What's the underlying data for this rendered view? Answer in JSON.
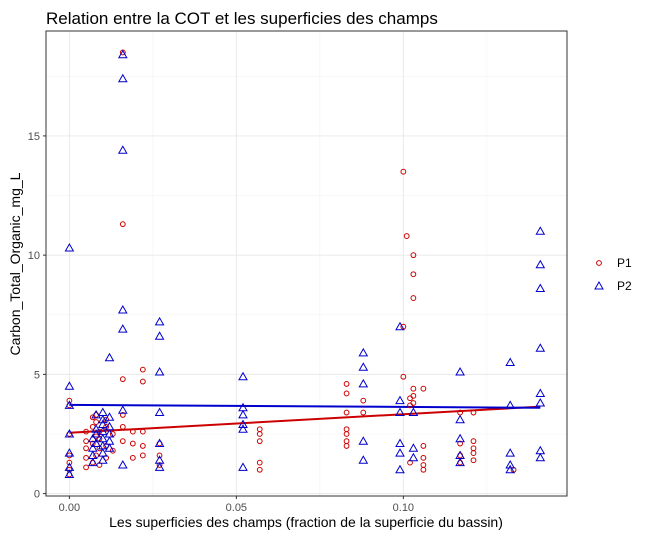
{
  "chart_data": {
    "type": "scatter",
    "title": "Relation entre la COT et les superficies des champs",
    "xlabel": "Les superficies des champs (fraction de la superficie du bassin)",
    "ylabel": "Carbon_Total_Organic_mg_L",
    "xlim": [
      -0.007,
      0.149
    ],
    "ylim": [
      -0.1,
      19.4
    ],
    "x_ticks": [
      0.0,
      0.05,
      0.1
    ],
    "x_tick_labels": [
      "0.00",
      "0.05",
      "0.10"
    ],
    "y_ticks": [
      0,
      5,
      10,
      15
    ],
    "y_tick_labels": [
      "0",
      "5",
      "10",
      "15"
    ],
    "grid": true,
    "legend_position": "right",
    "series": [
      {
        "name": "P1",
        "color": "#cc0000",
        "marker": "circle",
        "points": [
          [
            0.0,
            0.8
          ],
          [
            0.0,
            1.0
          ],
          [
            0.0,
            1.3
          ],
          [
            0.0,
            1.6
          ],
          [
            0.0,
            2.5
          ],
          [
            0.0,
            3.7
          ],
          [
            0.0,
            3.9
          ],
          [
            0.005,
            1.1
          ],
          [
            0.005,
            1.5
          ],
          [
            0.005,
            1.9
          ],
          [
            0.005,
            2.2
          ],
          [
            0.005,
            2.6
          ],
          [
            0.007,
            1.3
          ],
          [
            0.007,
            2.1
          ],
          [
            0.007,
            2.8
          ],
          [
            0.007,
            3.2
          ],
          [
            0.008,
            1.6
          ],
          [
            0.008,
            2.4
          ],
          [
            0.008,
            3.0
          ],
          [
            0.008,
            3.3
          ],
          [
            0.009,
            1.2
          ],
          [
            0.009,
            1.9
          ],
          [
            0.009,
            2.3
          ],
          [
            0.009,
            2.6
          ],
          [
            0.011,
            1.5
          ],
          [
            0.011,
            2.0
          ],
          [
            0.011,
            2.8
          ],
          [
            0.011,
            3.1
          ],
          [
            0.013,
            1.8
          ],
          [
            0.013,
            2.5
          ],
          [
            0.016,
            18.5
          ],
          [
            0.016,
            11.3
          ],
          [
            0.016,
            4.8
          ],
          [
            0.016,
            3.3
          ],
          [
            0.016,
            2.8
          ],
          [
            0.016,
            2.2
          ],
          [
            0.019,
            1.5
          ],
          [
            0.019,
            2.1
          ],
          [
            0.019,
            2.6
          ],
          [
            0.022,
            5.2
          ],
          [
            0.022,
            4.7
          ],
          [
            0.022,
            2.6
          ],
          [
            0.022,
            2.0
          ],
          [
            0.022,
            1.6
          ],
          [
            0.027,
            1.2
          ],
          [
            0.027,
            1.6
          ],
          [
            0.027,
            2.1
          ],
          [
            0.057,
            2.7
          ],
          [
            0.057,
            2.5
          ],
          [
            0.057,
            2.2
          ],
          [
            0.057,
            1.3
          ],
          [
            0.057,
            1.0
          ],
          [
            0.083,
            4.6
          ],
          [
            0.083,
            4.2
          ],
          [
            0.083,
            3.4
          ],
          [
            0.083,
            2.7
          ],
          [
            0.083,
            2.5
          ],
          [
            0.083,
            2.2
          ],
          [
            0.083,
            2.0
          ],
          [
            0.088,
            3.9
          ],
          [
            0.088,
            3.4
          ],
          [
            0.1,
            13.5
          ],
          [
            0.1,
            7.0
          ],
          [
            0.1,
            4.9
          ],
          [
            0.101,
            10.8
          ],
          [
            0.102,
            4.0
          ],
          [
            0.102,
            3.7
          ],
          [
            0.102,
            1.3
          ],
          [
            0.103,
            10.0
          ],
          [
            0.103,
            9.2
          ],
          [
            0.103,
            8.2
          ],
          [
            0.103,
            4.4
          ],
          [
            0.103,
            4.1
          ],
          [
            0.103,
            3.8
          ],
          [
            0.106,
            4.4
          ],
          [
            0.106,
            2.0
          ],
          [
            0.106,
            1.5
          ],
          [
            0.106,
            1.2
          ],
          [
            0.106,
            1.0
          ],
          [
            0.117,
            3.4
          ],
          [
            0.117,
            2.1
          ],
          [
            0.117,
            1.6
          ],
          [
            0.117,
            1.3
          ],
          [
            0.121,
            3.4
          ],
          [
            0.121,
            2.2
          ],
          [
            0.121,
            1.9
          ],
          [
            0.121,
            1.7
          ],
          [
            0.121,
            1.4
          ],
          [
            0.133,
            1.0
          ]
        ]
      },
      {
        "name": "P2",
        "color": "#0000cc",
        "marker": "triangle",
        "points": [
          [
            0.0,
            10.3
          ],
          [
            0.0,
            4.5
          ],
          [
            0.0,
            3.7
          ],
          [
            0.0,
            2.5
          ],
          [
            0.0,
            1.7
          ],
          [
            0.0,
            1.1
          ],
          [
            0.0,
            0.8
          ],
          [
            0.007,
            2.3
          ],
          [
            0.007,
            1.9
          ],
          [
            0.007,
            1.6
          ],
          [
            0.007,
            1.3
          ],
          [
            0.008,
            3.3
          ],
          [
            0.008,
            2.7
          ],
          [
            0.008,
            2.5
          ],
          [
            0.008,
            2.1
          ],
          [
            0.01,
            3.4
          ],
          [
            0.01,
            3.1
          ],
          [
            0.01,
            2.9
          ],
          [
            0.01,
            2.6
          ],
          [
            0.01,
            2.3
          ],
          [
            0.01,
            2.0
          ],
          [
            0.01,
            1.7
          ],
          [
            0.01,
            1.4
          ],
          [
            0.012,
            5.7
          ],
          [
            0.012,
            3.2
          ],
          [
            0.012,
            2.8
          ],
          [
            0.012,
            2.5
          ],
          [
            0.012,
            2.2
          ],
          [
            0.012,
            1.9
          ],
          [
            0.016,
            18.4
          ],
          [
            0.016,
            17.4
          ],
          [
            0.016,
            14.4
          ],
          [
            0.016,
            7.7
          ],
          [
            0.016,
            6.9
          ],
          [
            0.016,
            3.5
          ],
          [
            0.016,
            1.2
          ],
          [
            0.027,
            7.2
          ],
          [
            0.027,
            6.6
          ],
          [
            0.027,
            5.1
          ],
          [
            0.027,
            3.4
          ],
          [
            0.027,
            2.1
          ],
          [
            0.027,
            1.4
          ],
          [
            0.027,
            1.1
          ],
          [
            0.052,
            4.9
          ],
          [
            0.052,
            3.6
          ],
          [
            0.052,
            3.3
          ],
          [
            0.052,
            2.9
          ],
          [
            0.052,
            2.7
          ],
          [
            0.052,
            1.1
          ],
          [
            0.088,
            5.9
          ],
          [
            0.088,
            5.3
          ],
          [
            0.088,
            4.6
          ],
          [
            0.088,
            2.2
          ],
          [
            0.088,
            1.4
          ],
          [
            0.099,
            7.0
          ],
          [
            0.099,
            3.9
          ],
          [
            0.099,
            3.4
          ],
          [
            0.099,
            2.1
          ],
          [
            0.099,
            1.7
          ],
          [
            0.099,
            1.0
          ],
          [
            0.103,
            3.4
          ],
          [
            0.103,
            1.9
          ],
          [
            0.103,
            1.5
          ],
          [
            0.117,
            5.1
          ],
          [
            0.117,
            3.1
          ],
          [
            0.117,
            2.3
          ],
          [
            0.117,
            1.6
          ],
          [
            0.117,
            1.3
          ],
          [
            0.132,
            5.5
          ],
          [
            0.132,
            3.7
          ],
          [
            0.132,
            1.7
          ],
          [
            0.132,
            1.2
          ],
          [
            0.132,
            1.0
          ],
          [
            0.141,
            11.0
          ],
          [
            0.141,
            9.6
          ],
          [
            0.141,
            8.6
          ],
          [
            0.141,
            6.1
          ],
          [
            0.141,
            4.2
          ],
          [
            0.141,
            3.8
          ],
          [
            0.141,
            1.8
          ],
          [
            0.141,
            1.5
          ]
        ]
      }
    ],
    "fit_lines": [
      {
        "name": "P1",
        "color": "#cc0000",
        "x": [
          0.0,
          0.141
        ],
        "y": [
          2.55,
          3.65
        ]
      },
      {
        "name": "P2",
        "color": "#0000cc",
        "x": [
          0.0,
          0.141
        ],
        "y": [
          3.72,
          3.6
        ]
      }
    ]
  }
}
